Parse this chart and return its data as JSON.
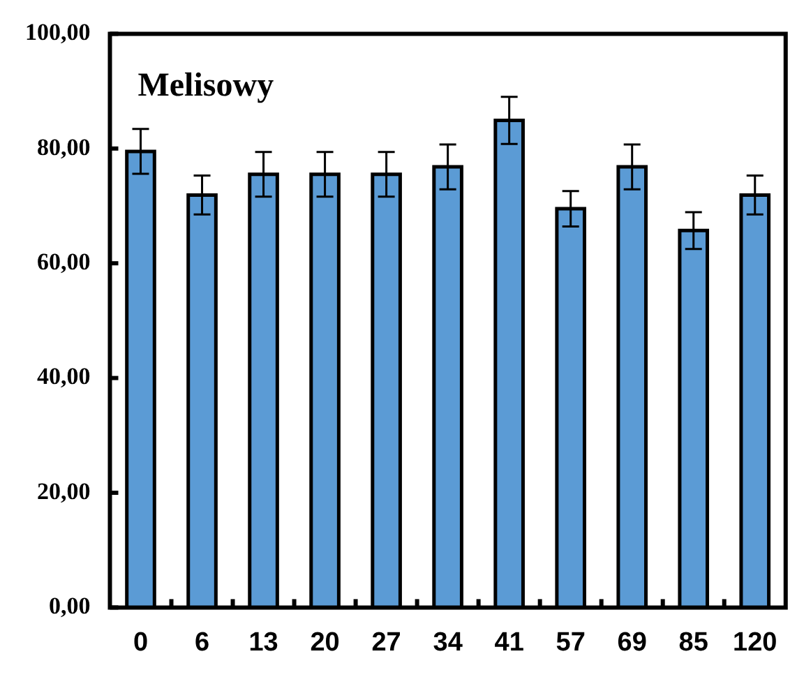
{
  "chart_data": {
    "type": "bar",
    "title": "Melisowy",
    "categories": [
      "0",
      "6",
      "13",
      "20",
      "27",
      "34",
      "41",
      "57",
      "69",
      "85",
      "120"
    ],
    "values": [
      79.5,
      71.9,
      75.5,
      75.5,
      75.5,
      76.8,
      84.9,
      69.5,
      76.8,
      65.7,
      71.9
    ],
    "errors": [
      3.9,
      3.4,
      3.9,
      3.9,
      3.9,
      3.9,
      4.1,
      3.1,
      3.9,
      3.2,
      3.4
    ],
    "color": "#5b9bd5",
    "ylim": [
      0,
      100
    ],
    "yticks": [
      {
        "value": 0,
        "label": "0,00"
      },
      {
        "value": 20,
        "label": "20,00"
      },
      {
        "value": 40,
        "label": "40,00"
      },
      {
        "value": 60,
        "label": "60,00"
      },
      {
        "value": 80,
        "label": "80,00"
      },
      {
        "value": 100,
        "label": "100,00"
      }
    ],
    "grid": false,
    "legend": false
  }
}
